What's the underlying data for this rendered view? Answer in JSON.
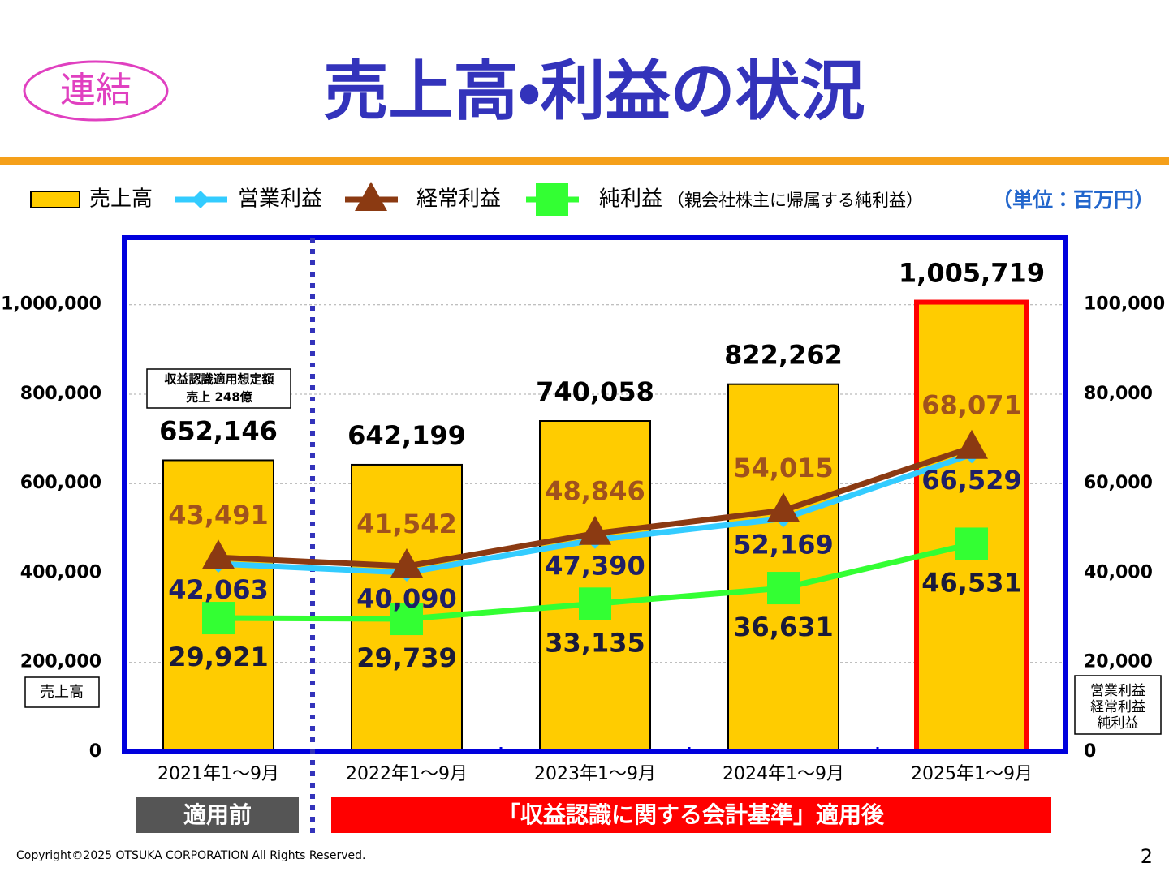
{
  "header": {
    "badge": "連結",
    "title": "売上高・利益の状況"
  },
  "chart_data": {
    "type": "bar",
    "categories": [
      "2021年1～9月",
      "2022年1～9月",
      "2023年1～9月",
      "2024年1～9月",
      "2025年1～9月"
    ],
    "series": [
      {
        "name": "売上高",
        "type": "bar",
        "color": "#ffcc00",
        "values": [
          652146,
          642199,
          740058,
          822262,
          1005719
        ],
        "value_labels": [
          "652,146",
          "642,199",
          "740,058",
          "822,262",
          "1,005,719"
        ],
        "label_color": "#000000"
      },
      {
        "name": "営業利益",
        "type": "line",
        "marker": "diamond",
        "axis": "y2",
        "color": "#33ccff",
        "values": [
          42063,
          40090,
          47390,
          52169,
          66529
        ],
        "value_labels": [
          "42,063",
          "40,090",
          "47,390",
          "52,169",
          "66,529"
        ],
        "label_color": "#1f1f66"
      },
      {
        "name": "経常利益",
        "type": "line",
        "marker": "triangle",
        "axis": "y2",
        "color": "#8b3a12",
        "values": [
          43491,
          41542,
          48846,
          54015,
          68071
        ],
        "value_labels": [
          "43,491",
          "41,542",
          "48,846",
          "54,015",
          "68,071"
        ],
        "label_color": "#a0521d"
      },
      {
        "name": "純利益",
        "type": "line",
        "marker": "square",
        "axis": "y2",
        "color": "#33ff33",
        "values": [
          29921,
          29739,
          33135,
          36631,
          46531
        ],
        "value_labels": [
          "29,921",
          "29,739",
          "33,135",
          "36,631",
          "46,531"
        ],
        "label_color": "#1a1a3a"
      }
    ],
    "legend_note": "（親会社株主に帰属する純利益）",
    "unit": "（単位：百万円）",
    "ylabel": "売上高",
    "y2label": [
      "営業利益",
      "経常利益",
      "純利益"
    ],
    "ylim": [
      0,
      1150000
    ],
    "yticks": [
      0,
      {
        "value": 200000,
        "label": "200,000"
      },
      {
        "value": 400000,
        "label": "400,000"
      },
      {
        "value": 600000,
        "label": "600,000"
      },
      {
        "value": 800000,
        "label": "800,000"
      },
      {
        "value": 1000000,
        "label": "1,000,000"
      }
    ],
    "y2lim": [
      0,
      115000
    ],
    "y2ticks": [
      0,
      {
        "value": 20000,
        "label": "20,000"
      },
      {
        "value": 40000,
        "label": "40,000"
      },
      {
        "value": 60000,
        "label": "60,000"
      },
      {
        "value": 80000,
        "label": "80,000"
      },
      {
        "value": 100000,
        "label": "100,000"
      }
    ],
    "grid": true,
    "highlight_index": 4,
    "highlight_color": "#ff0000",
    "annotation": [
      "収益認識適用想定額",
      "売上 248億"
    ],
    "period_labels": [
      "適用前",
      "「収益認識に関する会計基準」適用後"
    ]
  },
  "footer": {
    "copyright": "Copyright©2025 OTSUKA CORPORATION All Rights Reserved.",
    "page": 2
  }
}
